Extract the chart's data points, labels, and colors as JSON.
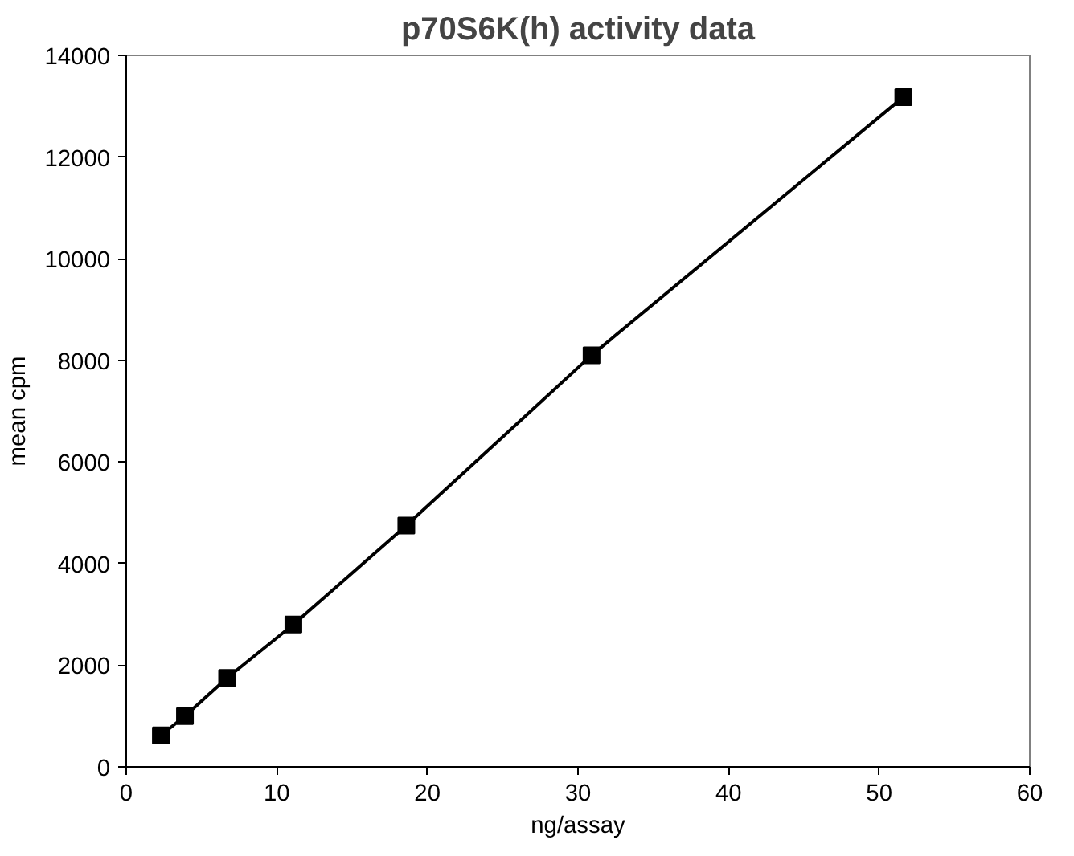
{
  "chart_data": {
    "type": "line",
    "title": "p70S6K(h) activity data",
    "xlabel": "ng/assay",
    "ylabel": "mean cpm",
    "x": [
      2.3,
      3.9,
      6.7,
      11.1,
      18.6,
      30.9,
      51.6
    ],
    "series": [
      {
        "color": "#000000",
        "values": [
          620,
          1000,
          1750,
          2800,
          4750,
          8100,
          13180
        ]
      }
    ],
    "xlim": [
      0,
      60
    ],
    "xticks": [
      0,
      10,
      20,
      30,
      40,
      50,
      60
    ],
    "ylim": [
      0,
      14000
    ],
    "yticks": [
      0,
      2000,
      4000,
      6000,
      8000,
      10000,
      12000,
      14000
    ],
    "grid": false,
    "marker": "square",
    "line_style": "solid"
  }
}
